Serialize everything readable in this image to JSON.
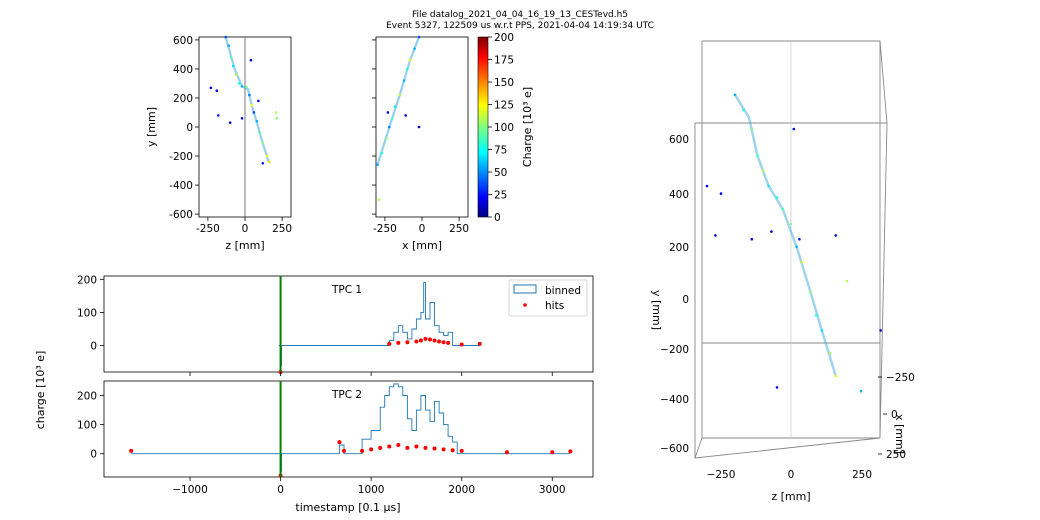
{
  "header": {
    "line1": "File datalog_2021_04_04_16_19_13_CESTevd.h5",
    "line2": "Event 5327, 122509 us w.r.t PPS, 2021-04-04 14:19:34 UTC"
  },
  "colors": {
    "binned": "#1f77b4",
    "hits": "#ff0000",
    "trigger": "#008000"
  },
  "chart_data": [
    {
      "type": "scatter",
      "xlabel": "z [mm]",
      "ylabel": "y [mm]",
      "xlim": [
        -310,
        310
      ],
      "ylim": [
        -620,
        620
      ],
      "xticks": [
        -250,
        0,
        250
      ],
      "yticks": [
        -600,
        -400,
        -200,
        0,
        200,
        400,
        600
      ],
      "colormap": "jet",
      "clim": [
        0,
        200
      ],
      "track": [
        [
          -130,
          620
        ],
        [
          -70,
          400
        ],
        [
          -20,
          280
        ],
        [
          20,
          260
        ],
        [
          45,
          150
        ],
        [
          80,
          30
        ],
        [
          110,
          -80
        ],
        [
          160,
          -240
        ]
      ],
      "points": [
        [
          -130,
          620,
          40
        ],
        [
          -110,
          560,
          60
        ],
        [
          -95,
          480,
          90
        ],
        [
          -80,
          420,
          70
        ],
        [
          -60,
          360,
          110
        ],
        [
          -40,
          300,
          80
        ],
        [
          -20,
          280,
          60
        ],
        [
          10,
          275,
          100
        ],
        [
          30,
          220,
          50
        ],
        [
          45,
          150,
          120
        ],
        [
          60,
          100,
          40
        ],
        [
          80,
          40,
          60
        ],
        [
          100,
          -40,
          90
        ],
        [
          120,
          -110,
          100
        ],
        [
          150,
          -200,
          120
        ],
        [
          165,
          -240,
          130
        ],
        [
          40,
          460,
          20
        ],
        [
          -230,
          270,
          25
        ],
        [
          -190,
          250,
          20
        ],
        [
          -180,
          80,
          30
        ],
        [
          -100,
          30,
          15
        ],
        [
          -20,
          60,
          20
        ],
        [
          210,
          100,
          110
        ],
        [
          215,
          60,
          100
        ],
        [
          120,
          -250,
          30
        ],
        [
          90,
          180,
          20
        ]
      ]
    },
    {
      "type": "scatter",
      "xlabel": "x [mm]",
      "ylabel": "",
      "xlim": [
        -310,
        310
      ],
      "ylim": [
        -620,
        620
      ],
      "xticks": [
        -250,
        0,
        250
      ],
      "yticks": [
        -600,
        -400,
        -200,
        0,
        200,
        400,
        600
      ],
      "colormap": "jet",
      "clim": [
        0,
        200
      ],
      "track": [
        [
          -300,
          -260
        ],
        [
          -220,
          0
        ],
        [
          -150,
          220
        ],
        [
          -80,
          460
        ],
        [
          -20,
          620
        ]
      ],
      "points": [
        [
          -300,
          -260,
          60
        ],
        [
          -270,
          -180,
          80
        ],
        [
          -240,
          -80,
          100
        ],
        [
          -220,
          0,
          50
        ],
        [
          -200,
          60,
          90
        ],
        [
          -180,
          140,
          70
        ],
        [
          -150,
          220,
          110
        ],
        [
          -120,
          320,
          60
        ],
        [
          -100,
          400,
          80
        ],
        [
          -80,
          460,
          120
        ],
        [
          -50,
          540,
          60
        ],
        [
          -20,
          620,
          40
        ],
        [
          -230,
          100,
          20
        ],
        [
          -110,
          80,
          15
        ],
        [
          -20,
          0,
          10
        ],
        [
          -290,
          -500,
          110
        ]
      ]
    },
    {
      "type": "colorbar",
      "label": "Charge [10³ e]",
      "range": [
        0,
        200
      ],
      "ticks": [
        0,
        25,
        50,
        75,
        100,
        125,
        150,
        175,
        200
      ]
    },
    {
      "type": "line",
      "annotation": "TPC 1",
      "xlim": [
        -1950,
        3450
      ],
      "ylim": [
        -80,
        210
      ],
      "xticks": [
        -1000,
        0,
        1000,
        2000,
        3000
      ],
      "yticks": [
        0,
        100,
        200
      ],
      "legend": {
        "position": "top-right",
        "entries": [
          "binned",
          "hits"
        ]
      },
      "trigger": {
        "x": 0,
        "ymin": -80,
        "ymax": 210
      },
      "binned": [
        [
          -20,
          0
        ],
        [
          0,
          -60
        ],
        [
          10,
          0
        ],
        [
          1150,
          0
        ],
        [
          1200,
          15
        ],
        [
          1250,
          40
        ],
        [
          1300,
          60
        ],
        [
          1350,
          40
        ],
        [
          1400,
          20
        ],
        [
          1450,
          50
        ],
        [
          1500,
          80
        ],
        [
          1550,
          100
        ],
        [
          1580,
          190
        ],
        [
          1600,
          80
        ],
        [
          1650,
          130
        ],
        [
          1700,
          60
        ],
        [
          1750,
          40
        ],
        [
          1800,
          30
        ],
        [
          1850,
          40
        ],
        [
          1900,
          0
        ],
        [
          2200,
          0
        ]
      ],
      "hits": [
        [
          0,
          -80
        ],
        [
          1200,
          5
        ],
        [
          1300,
          8
        ],
        [
          1400,
          10
        ],
        [
          1500,
          12
        ],
        [
          1550,
          15
        ],
        [
          1600,
          20
        ],
        [
          1650,
          18
        ],
        [
          1700,
          15
        ],
        [
          1750,
          12
        ],
        [
          1800,
          10
        ],
        [
          1850,
          8
        ],
        [
          2000,
          3
        ],
        [
          2200,
          5
        ]
      ]
    },
    {
      "type": "line",
      "annotation": "TPC 2",
      "xlabel": "timestamp [0.1 μs]",
      "xlim": [
        -1950,
        3450
      ],
      "ylim": [
        -80,
        250
      ],
      "xticks": [
        -1000,
        0,
        1000,
        2000,
        3000
      ],
      "yticks": [
        0,
        100,
        200
      ],
      "trigger": {
        "x": 0,
        "ymin": -80,
        "ymax": 250
      },
      "binned": [
        [
          -1650,
          0
        ],
        [
          -20,
          0
        ],
        [
          0,
          -60
        ],
        [
          10,
          0
        ],
        [
          600,
          0
        ],
        [
          650,
          30
        ],
        [
          700,
          0
        ],
        [
          800,
          0
        ],
        [
          900,
          50
        ],
        [
          1000,
          80
        ],
        [
          1100,
          160
        ],
        [
          1150,
          200
        ],
        [
          1200,
          230
        ],
        [
          1250,
          240
        ],
        [
          1300,
          230
        ],
        [
          1350,
          200
        ],
        [
          1400,
          120
        ],
        [
          1450,
          80
        ],
        [
          1500,
          150
        ],
        [
          1550,
          200
        ],
        [
          1600,
          150
        ],
        [
          1650,
          110
        ],
        [
          1700,
          180
        ],
        [
          1750,
          140
        ],
        [
          1800,
          100
        ],
        [
          1850,
          60
        ],
        [
          1900,
          40
        ],
        [
          1950,
          0
        ],
        [
          3200,
          0
        ]
      ],
      "hits": [
        [
          -1650,
          10
        ],
        [
          0,
          -75
        ],
        [
          650,
          40
        ],
        [
          700,
          10
        ],
        [
          900,
          10
        ],
        [
          1000,
          15
        ],
        [
          1100,
          20
        ],
        [
          1200,
          25
        ],
        [
          1300,
          30
        ],
        [
          1400,
          20
        ],
        [
          1500,
          25
        ],
        [
          1600,
          20
        ],
        [
          1700,
          18
        ],
        [
          1800,
          15
        ],
        [
          1900,
          12
        ],
        [
          2000,
          10
        ],
        [
          2500,
          5
        ],
        [
          3000,
          5
        ],
        [
          3200,
          8
        ]
      ]
    },
    {
      "type": "scatter",
      "shared_ylabel": "charge [10³ e]"
    },
    {
      "type": "scatter",
      "projection": "3d",
      "xlabel": "z [mm]",
      "ylabel": "y [mm]",
      "zlabel": "x [mm]",
      "xticks": [
        -250,
        0,
        250
      ],
      "yticks": [
        -600,
        -400,
        -200,
        0,
        200,
        400,
        600
      ],
      "zticks": [
        -250,
        0,
        250
      ],
      "track": [
        [
          -200,
          540
        ],
        [
          -150,
          480
        ],
        [
          -120,
          380
        ],
        [
          -80,
          300
        ],
        [
          -30,
          240
        ],
        [
          20,
          140
        ],
        [
          70,
          20
        ],
        [
          110,
          -80
        ],
        [
          160,
          -200
        ]
      ],
      "points": [
        [
          -200,
          540,
          60
        ],
        [
          -170,
          500,
          80
        ],
        [
          -140,
          450,
          100
        ],
        [
          -120,
          380,
          90
        ],
        [
          -100,
          340,
          110
        ],
        [
          -80,
          300,
          70
        ],
        [
          -50,
          270,
          80
        ],
        [
          -30,
          240,
          90
        ],
        [
          0,
          200,
          100
        ],
        [
          20,
          140,
          60
        ],
        [
          40,
          100,
          120
        ],
        [
          70,
          20,
          100
        ],
        [
          90,
          -40,
          80
        ],
        [
          110,
          -80,
          70
        ],
        [
          140,
          -140,
          110
        ],
        [
          160,
          -200,
          120
        ],
        [
          10,
          450,
          20
        ],
        [
          -300,
          300,
          20
        ],
        [
          -250,
          280,
          20
        ],
        [
          -270,
          170,
          15
        ],
        [
          -140,
          160,
          20
        ],
        [
          -70,
          180,
          15
        ],
        [
          30,
          160,
          30
        ],
        [
          160,
          170,
          20
        ],
        [
          200,
          50,
          110
        ],
        [
          320,
          -80,
          15
        ],
        [
          250,
          -240,
          60
        ],
        [
          -50,
          -230,
          20
        ]
      ]
    }
  ]
}
